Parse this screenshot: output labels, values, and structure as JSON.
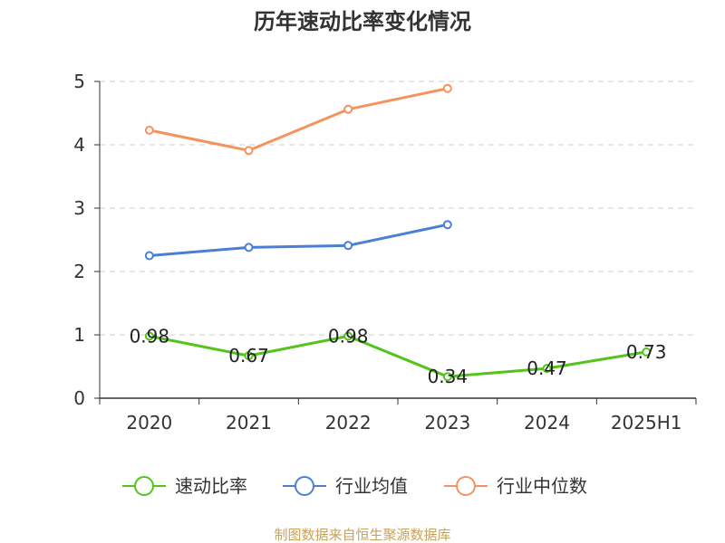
{
  "chart_data": {
    "type": "line",
    "title": "历年速动比率变化情况",
    "categories": [
      "2020",
      "2021",
      "2022",
      "2023",
      "2024",
      "2025H1"
    ],
    "ylim": [
      0,
      5
    ],
    "yticks": [
      "0",
      "1",
      "2",
      "3",
      "4",
      "5"
    ],
    "grid": true,
    "legend_position": "bottom",
    "series": [
      {
        "name": "速动比率",
        "color": "#52c41a",
        "values": [
          0.98,
          0.67,
          0.98,
          0.34,
          0.47,
          0.73
        ],
        "labels": [
          "0.98",
          "0.67",
          "0.98",
          "0.34",
          "0.47",
          "0.73"
        ]
      },
      {
        "name": "行业均值",
        "color": "#4a7fd6",
        "values": [
          2.25,
          2.38,
          2.41,
          2.74,
          null,
          null
        ]
      },
      {
        "name": "行业中位数",
        "color": "#f5925e",
        "values": [
          4.23,
          3.91,
          4.56,
          4.89,
          null,
          null
        ]
      }
    ]
  },
  "footer": {
    "source": "制图数据来自恒生聚源数据库"
  }
}
